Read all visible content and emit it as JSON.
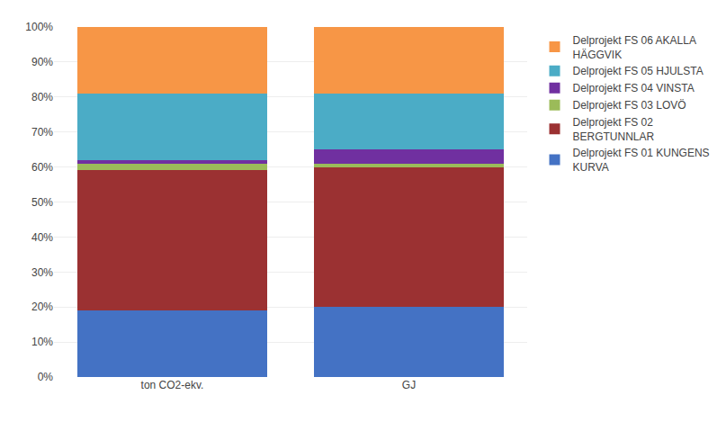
{
  "chart_data": {
    "type": "bar",
    "stacked": true,
    "categories": [
      "ton CO2-ekv.",
      "GJ"
    ],
    "series": [
      {
        "name": "Delprojekt FS 01 KUNGENS\nKURVA",
        "color": "#4472C4",
        "values": [
          19,
          20
        ]
      },
      {
        "name": "Delprojekt FS 02\nBERGTUNNLAR",
        "color": "#9B3132",
        "values": [
          40,
          40
        ]
      },
      {
        "name": "Delprojekt FS 03 LOVÖ",
        "color": "#9BBB59",
        "values": [
          2,
          1
        ]
      },
      {
        "name": "Delprojekt FS 04 VINSTA",
        "color": "#7030A0",
        "values": [
          1,
          4
        ]
      },
      {
        "name": "Delprojekt FS 05 HJULSTA",
        "color": "#4BACC6",
        "values": [
          19,
          16
        ]
      },
      {
        "name": "Delprojekt FS 06 AKALLA\nHÄGGVIK",
        "color": "#F79646",
        "values": [
          19,
          19
        ]
      }
    ],
    "ylim": [
      0,
      100
    ],
    "yticks": [
      {
        "value": 0,
        "label": "0%"
      },
      {
        "value": 10,
        "label": "10%"
      },
      {
        "value": 20,
        "label": "20%"
      },
      {
        "value": 30,
        "label": "30%"
      },
      {
        "value": 40,
        "label": "40%"
      },
      {
        "value": 50,
        "label": "50%"
      },
      {
        "value": 60,
        "label": "60%"
      },
      {
        "value": 70,
        "label": "70%"
      },
      {
        "value": 80,
        "label": "80%"
      },
      {
        "value": 90,
        "label": "90%"
      },
      {
        "value": 100,
        "label": "100%"
      }
    ],
    "grid": true,
    "legend": "right"
  }
}
